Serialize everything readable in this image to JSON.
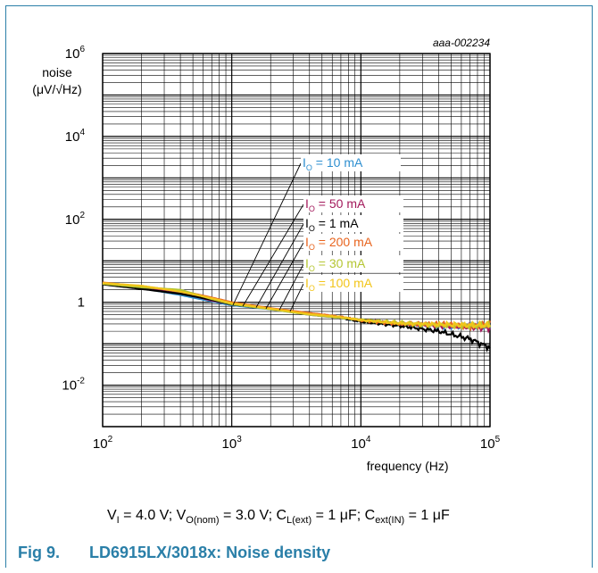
{
  "figure_id": "aaa-002234",
  "caption": {
    "number": "Fig 9.",
    "title": "LD6915LX/3018x: Noise density"
  },
  "conditions": {
    "vi_sym": "V",
    "vi_sub": "I",
    "vi_val": " = 4.0 V; ",
    "vo_sym": "V",
    "vo_sub": "O(nom)",
    "vo_val": " = 3.0 V; ",
    "cl_sym": "C",
    "cl_sub": "L(ext)",
    "cl_val": " = 1 μF; ",
    "cin_sym": "C",
    "cin_sub": "ext(IN)",
    "cin_val": " = 1 μF"
  },
  "chart_data": {
    "type": "line",
    "xscale": "log",
    "yscale": "log",
    "xlim": [
      100,
      100000
    ],
    "ylim": [
      0.001,
      1000000
    ],
    "grid": true,
    "ylabel_lines": [
      "noise",
      "(μV/√Hz)"
    ],
    "xlabel": "frequency (Hz)",
    "xticks": [
      {
        "value": 100,
        "base": "10",
        "exp": "2"
      },
      {
        "value": 1000,
        "base": "10",
        "exp": "3"
      },
      {
        "value": 10000,
        "base": "10",
        "exp": "4"
      },
      {
        "value": 100000,
        "base": "10",
        "exp": "5"
      }
    ],
    "yticks": [
      {
        "value": 1000000,
        "base": "10",
        "exp": "6"
      },
      {
        "value": 10000,
        "base": "10",
        "exp": "4"
      },
      {
        "value": 100,
        "base": "10",
        "exp": "2"
      },
      {
        "value": 1,
        "base": "1",
        "exp": ""
      },
      {
        "value": 0.01,
        "base": "10",
        "exp": "-2"
      }
    ],
    "legend_placement": "right-middle with leader lines",
    "series": [
      {
        "name": "IO = 10 mA",
        "label_main": "I",
        "label_sub": "O",
        "label_value": " = 10 mA",
        "color": "#2e8fd0",
        "pointer_value": 0.85,
        "x": [
          100,
          200,
          400,
          700,
          1000,
          2000,
          4000,
          7000,
          10000,
          20000,
          40000,
          70000,
          100000
        ],
        "y": [
          2.8,
          2.2,
          1.5,
          1.05,
          0.85,
          0.68,
          0.5,
          0.42,
          0.35,
          0.29,
          0.27,
          0.26,
          0.25
        ]
      },
      {
        "name": "IO = 50 mA",
        "label_main": "I",
        "label_sub": "O",
        "label_value": " = 50 mA",
        "color": "#a3195b",
        "pointer_value": 0.8,
        "x": [
          100,
          200,
          400,
          700,
          1000,
          2000,
          4000,
          7000,
          10000,
          20000,
          40000,
          70000,
          100000
        ],
        "y": [
          2.9,
          2.3,
          1.7,
          1.1,
          0.9,
          0.7,
          0.5,
          0.43,
          0.37,
          0.3,
          0.27,
          0.25,
          0.24
        ]
      },
      {
        "name": "IO = 1 mA",
        "label_main": "I",
        "label_sub": "O",
        "label_value": " = 1 mA",
        "color": "#000000",
        "pointer_value": 0.75,
        "x": [
          100,
          200,
          400,
          700,
          1000,
          2000,
          4000,
          7000,
          10000,
          20000,
          40000,
          70000,
          100000
        ],
        "y": [
          2.7,
          2.1,
          1.6,
          1.15,
          0.88,
          0.7,
          0.52,
          0.42,
          0.34,
          0.27,
          0.2,
          0.13,
          0.08
        ]
      },
      {
        "name": "IO = 200 mA",
        "label_main": "I",
        "label_sub": "O",
        "label_value": " = 200 mA",
        "color": "#e8641e",
        "pointer_value": 0.7,
        "x": [
          100,
          200,
          400,
          700,
          1000,
          2000,
          4000,
          7000,
          10000,
          20000,
          40000,
          70000,
          100000
        ],
        "y": [
          3.0,
          2.4,
          1.9,
          1.3,
          1.0,
          0.72,
          0.55,
          0.45,
          0.36,
          0.3,
          0.3,
          0.27,
          0.3
        ]
      },
      {
        "name": "IO = 30 mA",
        "label_main": "I",
        "label_sub": "O",
        "label_value": " = 30 mA",
        "color": "#b5c632",
        "pointer_value": 0.65,
        "x": [
          100,
          200,
          400,
          700,
          1000,
          2000,
          4000,
          7000,
          10000,
          20000,
          40000,
          70000,
          100000
        ],
        "y": [
          2.8,
          2.3,
          2.0,
          1.2,
          0.9,
          0.68,
          0.5,
          0.42,
          0.38,
          0.32,
          0.28,
          0.27,
          0.27
        ]
      },
      {
        "name": "IO = 100 mA",
        "label_main": "I",
        "label_sub": "O",
        "label_value": " = 100 mA",
        "color": "#f2c51a",
        "pointer_value": 0.6,
        "x": [
          100,
          200,
          400,
          700,
          1000,
          2000,
          4000,
          7000,
          10000,
          20000,
          40000,
          70000,
          100000
        ],
        "y": [
          2.9,
          2.5,
          1.8,
          1.25,
          0.95,
          0.7,
          0.52,
          0.44,
          0.37,
          0.31,
          0.29,
          0.28,
          0.28
        ]
      }
    ]
  }
}
